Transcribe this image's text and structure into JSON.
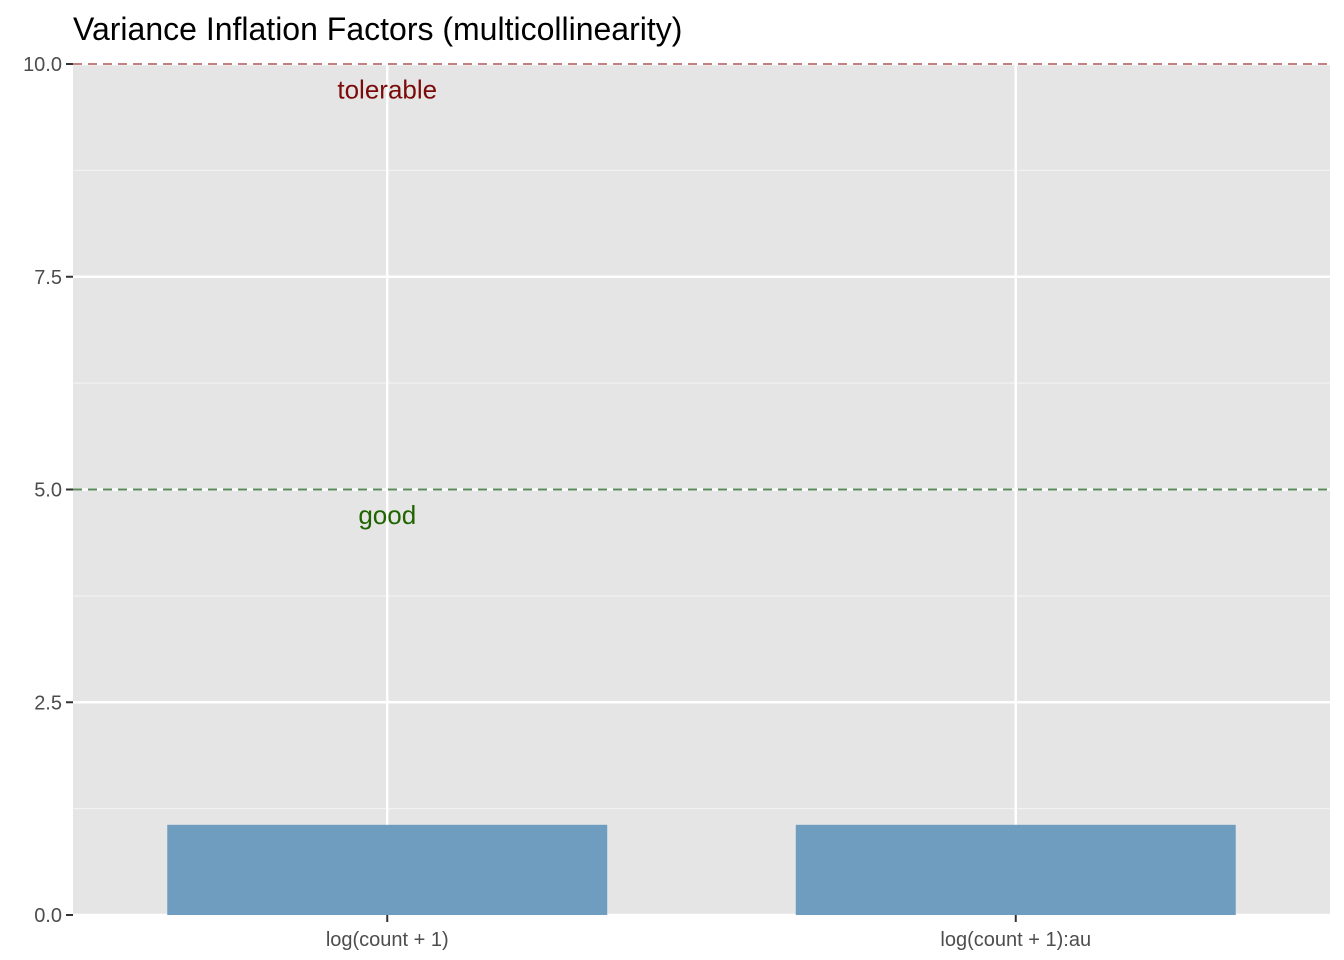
{
  "chart_data": {
    "type": "bar",
    "title": "Variance Inflation Factors (multicollinearity)",
    "xlabel": "",
    "ylabel": "",
    "categories": [
      "log(count + 1)",
      "log(count + 1):au"
    ],
    "values": [
      1.06,
      1.06
    ],
    "ylim": [
      0,
      10
    ],
    "y_ticks": [
      0.0,
      2.5,
      5.0,
      7.5,
      10.0
    ],
    "y_tick_labels": [
      "0.0",
      "2.5",
      "5.0",
      "7.5",
      "10.0"
    ],
    "grid": true,
    "legend": "none",
    "bar_color": "#6e9dc0",
    "panel_background": "#e5e5e5",
    "reference_lines": [
      {
        "y": 5,
        "label": "good",
        "label_y": 4.7,
        "color": "#5a8a5a",
        "label_color": "#1f6400",
        "style": "dashed"
      },
      {
        "y": 10,
        "label": "tolerable",
        "label_y": 9.7,
        "color": "#c48080",
        "label_color": "#7b0a0a",
        "style": "dashed"
      }
    ]
  }
}
